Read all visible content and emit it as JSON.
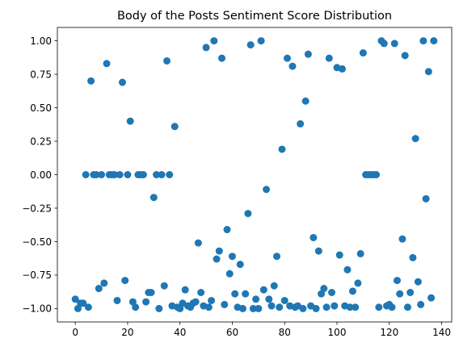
{
  "chart_data": {
    "type": "scatter",
    "title": "Body of the Posts Sentiment Score Distribution",
    "xlabel": "",
    "ylabel": "",
    "xlim": [
      -6.85,
      143.85
    ],
    "ylim": [
      -1.1,
      1.1
    ],
    "grid": false,
    "marker_color": "#1f77b4",
    "x_ticks": [
      {
        "value": 0,
        "label": "0"
      },
      {
        "value": 20,
        "label": "20"
      },
      {
        "value": 40,
        "label": "40"
      },
      {
        "value": 60,
        "label": "60"
      },
      {
        "value": 80,
        "label": "80"
      },
      {
        "value": 100,
        "label": "100"
      },
      {
        "value": 120,
        "label": "120"
      },
      {
        "value": 140,
        "label": "140"
      }
    ],
    "y_ticks": [
      {
        "value": -1.0,
        "label": "−1.00"
      },
      {
        "value": -0.75,
        "label": "−0.75"
      },
      {
        "value": -0.5,
        "label": "−0.50"
      },
      {
        "value": -0.25,
        "label": "−0.25"
      },
      {
        "value": 0.0,
        "label": "0.00"
      },
      {
        "value": 0.25,
        "label": "0.25"
      },
      {
        "value": 0.5,
        "label": "0.50"
      },
      {
        "value": 0.75,
        "label": "0.75"
      },
      {
        "value": 1.0,
        "label": "1.00"
      }
    ],
    "points": [
      [
        0,
        -0.93
      ],
      [
        1,
        -1.0
      ],
      [
        2,
        -0.96
      ],
      [
        3,
        -0.96
      ],
      [
        4,
        0.0
      ],
      [
        5,
        -0.99
      ],
      [
        6,
        0.7
      ],
      [
        7,
        0.0
      ],
      [
        8,
        0.0
      ],
      [
        9,
        -0.85
      ],
      [
        10,
        0.0
      ],
      [
        11,
        -0.81
      ],
      [
        12,
        0.83
      ],
      [
        13,
        0.0
      ],
      [
        14,
        0.0
      ],
      [
        15,
        0.0
      ],
      [
        16,
        -0.94
      ],
      [
        17,
        0.0
      ],
      [
        18,
        0.69
      ],
      [
        19,
        -0.79
      ],
      [
        20,
        0.0
      ],
      [
        21,
        0.4
      ],
      [
        22,
        -0.95
      ],
      [
        23,
        -0.99
      ],
      [
        24,
        0.0
      ],
      [
        25,
        0.0
      ],
      [
        26,
        0.0
      ],
      [
        27,
        -0.95
      ],
      [
        28,
        -0.88
      ],
      [
        29,
        -0.88
      ],
      [
        30,
        -0.17
      ],
      [
        31,
        0.0
      ],
      [
        32,
        -1.0
      ],
      [
        33,
        0.0
      ],
      [
        34,
        -0.83
      ],
      [
        35,
        0.85
      ],
      [
        36,
        0.0
      ],
      [
        37,
        -0.98
      ],
      [
        38,
        0.36
      ],
      [
        39,
        -0.99
      ],
      [
        40,
        -1.0
      ],
      [
        41,
        -0.96
      ],
      [
        42,
        -0.86
      ],
      [
        43,
        -0.98
      ],
      [
        44,
        -0.99
      ],
      [
        45,
        -0.96
      ],
      [
        46,
        -0.95
      ],
      [
        47,
        -0.51
      ],
      [
        48,
        -0.88
      ],
      [
        49,
        -0.98
      ],
      [
        50,
        0.95
      ],
      [
        51,
        -0.99
      ],
      [
        52,
        -0.94
      ],
      [
        53,
        1.0
      ],
      [
        54,
        -0.63
      ],
      [
        55,
        -0.57
      ],
      [
        56,
        0.87
      ],
      [
        57,
        -0.97
      ],
      [
        58,
        -0.41
      ],
      [
        59,
        -0.74
      ],
      [
        60,
        -0.61
      ],
      [
        61,
        -0.89
      ],
      [
        62,
        -0.99
      ],
      [
        63,
        -0.67
      ],
      [
        64,
        -1.0
      ],
      [
        65,
        -0.89
      ],
      [
        66,
        -0.29
      ],
      [
        67,
        0.97
      ],
      [
        68,
        -1.0
      ],
      [
        69,
        -0.93
      ],
      [
        70,
        -1.0
      ],
      [
        71,
        1.0
      ],
      [
        72,
        -0.86
      ],
      [
        73,
        -0.11
      ],
      [
        74,
        -0.93
      ],
      [
        75,
        -0.98
      ],
      [
        76,
        -0.83
      ],
      [
        77,
        -0.61
      ],
      [
        78,
        -0.99
      ],
      [
        79,
        0.19
      ],
      [
        80,
        -0.94
      ],
      [
        81,
        0.87
      ],
      [
        82,
        -0.98
      ],
      [
        83,
        0.81
      ],
      [
        84,
        -0.99
      ],
      [
        85,
        -0.98
      ],
      [
        86,
        0.38
      ],
      [
        87,
        -1.0
      ],
      [
        88,
        0.55
      ],
      [
        89,
        0.9
      ],
      [
        90,
        -0.98
      ],
      [
        91,
        -0.47
      ],
      [
        92,
        -1.0
      ],
      [
        93,
        -0.57
      ],
      [
        94,
        -0.89
      ],
      [
        95,
        -0.85
      ],
      [
        96,
        -0.99
      ],
      [
        97,
        0.87
      ],
      [
        98,
        -0.88
      ],
      [
        99,
        -0.98
      ],
      [
        100,
        0.8
      ],
      [
        101,
        -0.6
      ],
      [
        102,
        0.79
      ],
      [
        103,
        -0.98
      ],
      [
        104,
        -0.71
      ],
      [
        105,
        -0.99
      ],
      [
        106,
        -0.87
      ],
      [
        107,
        -0.99
      ],
      [
        108,
        -0.81
      ],
      [
        109,
        -0.59
      ],
      [
        110,
        0.91
      ],
      [
        111,
        0.0
      ],
      [
        112,
        0.0
      ],
      [
        113,
        0.0
      ],
      [
        114,
        0.0
      ],
      [
        115,
        0.0
      ],
      [
        116,
        -0.99
      ],
      [
        117,
        1.0
      ],
      [
        118,
        0.98
      ],
      [
        119,
        -0.98
      ],
      [
        120,
        -0.97
      ],
      [
        121,
        -0.99
      ],
      [
        122,
        0.98
      ],
      [
        123,
        -0.79
      ],
      [
        124,
        -0.89
      ],
      [
        125,
        -0.48
      ],
      [
        126,
        0.89
      ],
      [
        127,
        -0.99
      ],
      [
        128,
        -0.88
      ],
      [
        129,
        -0.62
      ],
      [
        130,
        0.27
      ],
      [
        131,
        -0.8
      ],
      [
        132,
        -0.97
      ],
      [
        133,
        1.0
      ],
      [
        134,
        -0.18
      ],
      [
        135,
        0.77
      ],
      [
        136,
        -0.92
      ],
      [
        137,
        1.0
      ]
    ]
  }
}
